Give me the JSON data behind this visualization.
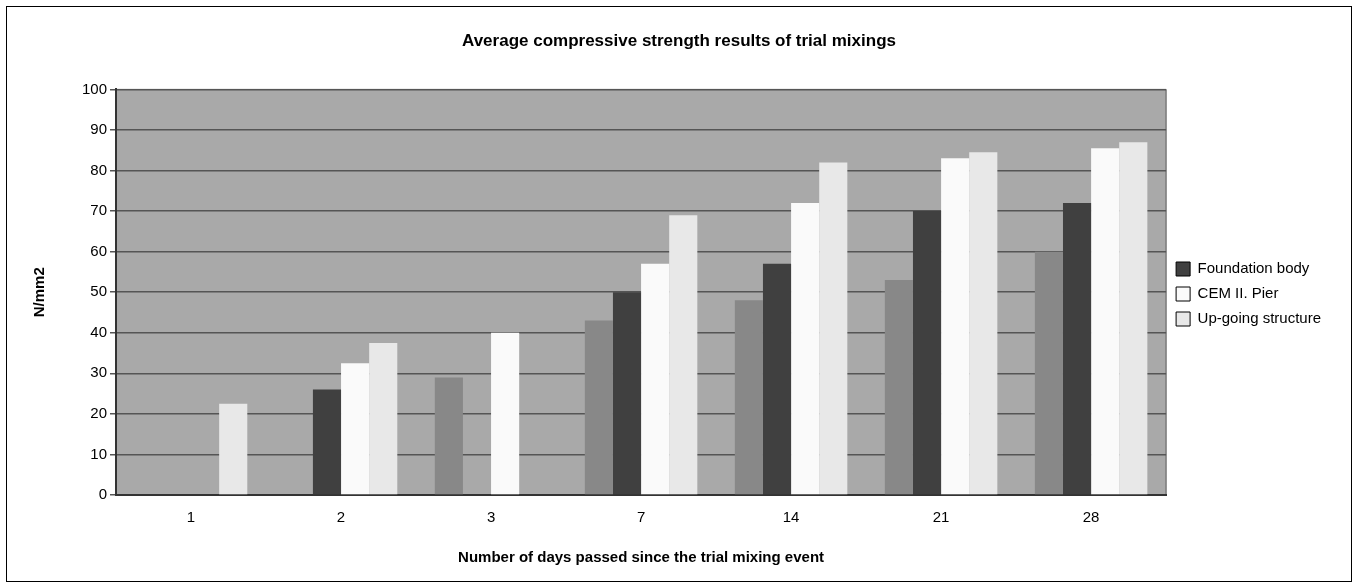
{
  "chart_data": {
    "type": "bar",
    "title": "Average compressive strength results of trial mixings",
    "xlabel": "Number of days passed since the trial mixing event",
    "ylabel": "N/mm2",
    "categories": [
      "1",
      "2",
      "3",
      "7",
      "14",
      "21",
      "28"
    ],
    "series": [
      {
        "color": "#888888",
        "values": [
          null,
          null,
          29,
          43,
          48,
          53,
          60
        ]
      },
      {
        "name": "Foundation body",
        "color": "#404040",
        "values": [
          null,
          26,
          null,
          50,
          57,
          70,
          72
        ]
      },
      {
        "name": "CEM II. Pier",
        "color": "#fafafa",
        "values": [
          null,
          32.5,
          40,
          57,
          72,
          83,
          85.5
        ]
      },
      {
        "name": "Up-going structure",
        "color": "#e8e8e8",
        "values": [
          22.5,
          37.5,
          null,
          69,
          82,
          84.5,
          87
        ]
      }
    ],
    "ylim": [
      0,
      100
    ],
    "yticks": [
      0,
      10,
      20,
      30,
      40,
      50,
      60,
      70,
      80,
      90,
      100
    ],
    "grid": "y",
    "legend": "right"
  }
}
